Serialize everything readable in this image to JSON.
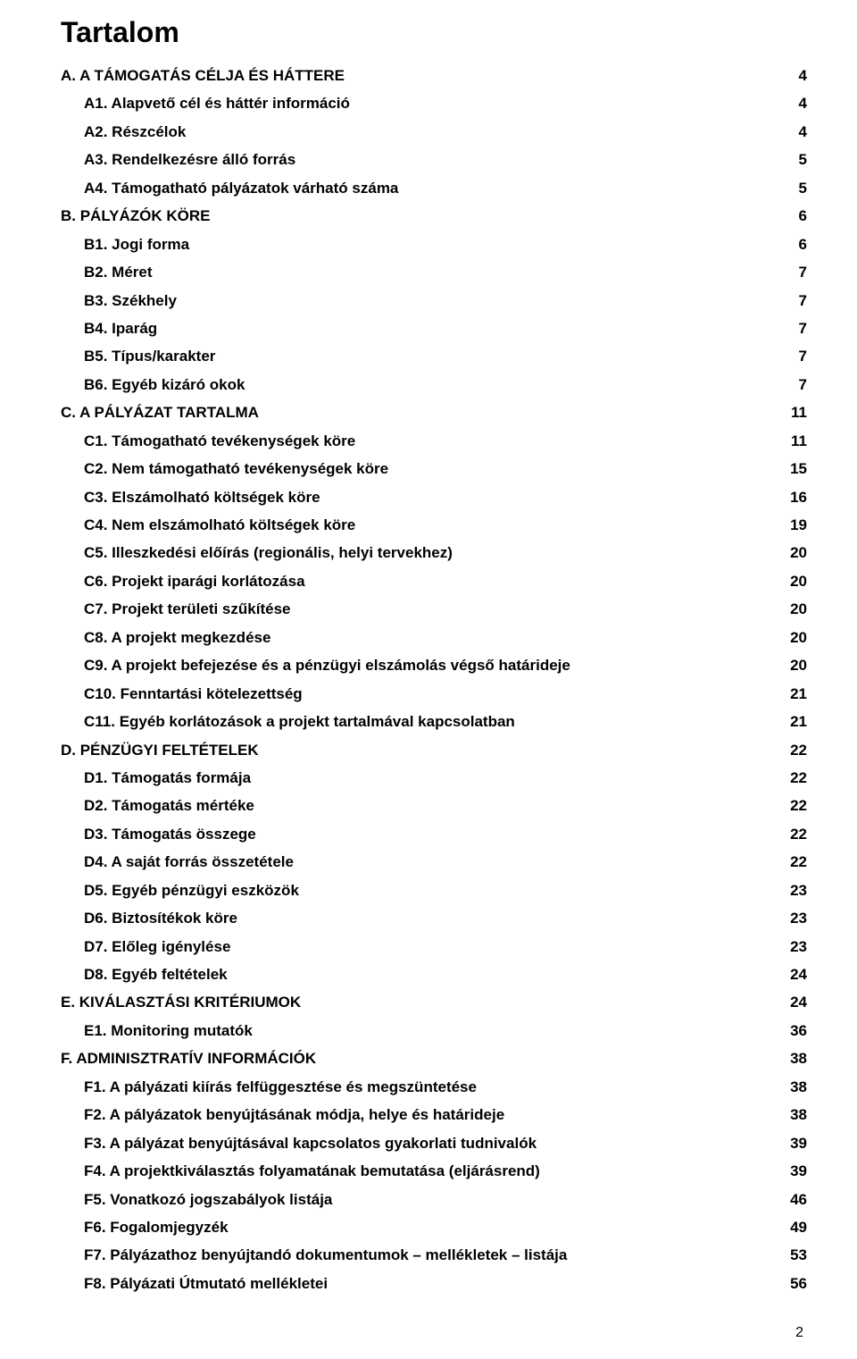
{
  "title": "Tartalom",
  "page_number": "2",
  "entries": [
    {
      "level": 0,
      "label": "A.   A TÁMOGATÁS CÉLJA ÉS HÁTTERE",
      "page": "4"
    },
    {
      "level": 1,
      "label": "A1. Alapvető cél és háttér információ",
      "page": "4"
    },
    {
      "level": 1,
      "label": "A2. Részcélok",
      "page": "4"
    },
    {
      "level": 1,
      "label": "A3. Rendelkezésre álló forrás",
      "page": "5"
    },
    {
      "level": 1,
      "label": "A4. Támogatható pályázatok várható száma",
      "page": "5"
    },
    {
      "level": 0,
      "label": "B.   PÁLYÁZÓK KÖRE",
      "page": "6"
    },
    {
      "level": 1,
      "label": "B1. Jogi forma",
      "page": "6"
    },
    {
      "level": 1,
      "label": "B2. Méret",
      "page": "7"
    },
    {
      "level": 1,
      "label": "B3. Székhely",
      "page": "7"
    },
    {
      "level": 1,
      "label": "B4. Iparág",
      "page": "7"
    },
    {
      "level": 1,
      "label": "B5. Típus/karakter",
      "page": "7"
    },
    {
      "level": 1,
      "label": "B6. Egyéb kizáró okok",
      "page": "7"
    },
    {
      "level": 0,
      "label": "C.   A PÁLYÁZAT TARTALMA",
      "page": "11"
    },
    {
      "level": 1,
      "label": "C1. Támogatható tevékenységek köre",
      "page": "11"
    },
    {
      "level": 1,
      "label": "C2. Nem támogatható tevékenységek köre",
      "page": "15"
    },
    {
      "level": 1,
      "label": "C3. Elszámolható költségek köre",
      "page": "16"
    },
    {
      "level": 1,
      "label": "C4. Nem elszámolható költségek köre",
      "page": "19"
    },
    {
      "level": 1,
      "label": "C5. Illeszkedési előírás (regionális, helyi tervekhez)",
      "page": "20"
    },
    {
      "level": 1,
      "label": "C6. Projekt iparági korlátozása",
      "page": "20"
    },
    {
      "level": 1,
      "label": "C7. Projekt területi szűkítése",
      "page": "20"
    },
    {
      "level": 1,
      "label": "C8. A projekt megkezdése",
      "page": "20"
    },
    {
      "level": 1,
      "label": "C9. A projekt befejezése és a pénzügyi elszámolás végső határideje",
      "page": "20"
    },
    {
      "level": 1,
      "label": "C10. Fenntartási kötelezettség",
      "page": "21"
    },
    {
      "level": 1,
      "label": "C11. Egyéb korlátozások a projekt tartalmával kapcsolatban",
      "page": "21"
    },
    {
      "level": 0,
      "label": "D.   PÉNZÜGYI FELTÉTELEK",
      "page": "22"
    },
    {
      "level": 1,
      "label": "D1. Támogatás formája",
      "page": "22"
    },
    {
      "level": 1,
      "label": "D2. Támogatás mértéke",
      "page": "22"
    },
    {
      "level": 1,
      "label": "D3. Támogatás összege",
      "page": "22"
    },
    {
      "level": 1,
      "label": "D4. A saját forrás összetétele",
      "page": "22"
    },
    {
      "level": 1,
      "label": "D5. Egyéb pénzügyi eszközök",
      "page": "23"
    },
    {
      "level": 1,
      "label": "D6. Biztosítékok köre",
      "page": "23"
    },
    {
      "level": 1,
      "label": "D7. Előleg igénylése",
      "page": "23"
    },
    {
      "level": 1,
      "label": "D8. Egyéb feltételek",
      "page": "24"
    },
    {
      "level": 0,
      "label": "E.   KIVÁLASZTÁSI KRITÉRIUMOK",
      "page": "24"
    },
    {
      "level": 1,
      "label": "E1. Monitoring mutatók",
      "page": "36"
    },
    {
      "level": 0,
      "label": "F.   ADMINISZTRATÍV INFORMÁCIÓK",
      "page": "38"
    },
    {
      "level": 1,
      "label": "F1. A pályázati kiírás felfüggesztése és megszüntetése",
      "page": "38"
    },
    {
      "level": 1,
      "label": "F2. A pályázatok benyújtásának módja, helye és határideje",
      "page": "38"
    },
    {
      "level": 1,
      "label": "F3. A pályázat benyújtásával kapcsolatos gyakorlati tudnivalók",
      "page": "39"
    },
    {
      "level": 1,
      "label": "F4. A projektkiválasztás folyamatának bemutatása (eljárásrend)",
      "page": "39"
    },
    {
      "level": 1,
      "label": "F5. Vonatkozó jogszabályok listája",
      "page": "46"
    },
    {
      "level": 1,
      "label": "F6. Fogalomjegyzék",
      "page": "49"
    },
    {
      "level": 1,
      "label": "F7. Pályázathoz benyújtandó dokumentumok – mellékletek – listája",
      "page": "53"
    },
    {
      "level": 1,
      "label": "F8. Pályázati Útmutató mellékletei",
      "page": "56"
    }
  ]
}
